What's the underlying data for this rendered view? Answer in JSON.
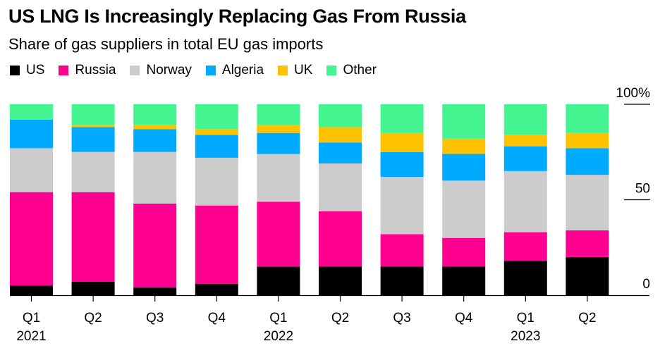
{
  "chart_data": {
    "type": "bar",
    "stacked": true,
    "title": "US LNG Is Increasingly Replacing Gas From Russia",
    "subtitle": "Share of gas suppliers in total EU gas imports",
    "xlabel": "",
    "ylabel": "",
    "ylim": [
      0,
      100
    ],
    "y_ticks": [
      {
        "value": 100,
        "label": "100%"
      },
      {
        "value": 50,
        "label": "50"
      },
      {
        "value": 0,
        "label": "0"
      }
    ],
    "categories": [
      "Q1",
      "Q2",
      "Q3",
      "Q4",
      "Q1",
      "Q2",
      "Q3",
      "Q4",
      "Q1",
      "Q2"
    ],
    "year_labels": [
      {
        "index": 0,
        "label": "2021"
      },
      {
        "index": 4,
        "label": "2022"
      },
      {
        "index": 8,
        "label": "2023"
      }
    ],
    "legend_position": "top-left",
    "series": [
      {
        "name": "US",
        "color": "#000000",
        "values": [
          5,
          7,
          4,
          6,
          15,
          15,
          15,
          15,
          18,
          20
        ]
      },
      {
        "name": "Russia",
        "color": "#ff0090",
        "values": [
          49,
          47,
          44,
          41,
          34,
          29,
          17,
          15,
          15,
          14
        ]
      },
      {
        "name": "Norway",
        "color": "#cccccc",
        "values": [
          23,
          21,
          27,
          25,
          25,
          25,
          30,
          30,
          32,
          29
        ]
      },
      {
        "name": "Algeria",
        "color": "#00aaff",
        "values": [
          15,
          13,
          12,
          12,
          11,
          11,
          13,
          14,
          13,
          14
        ]
      },
      {
        "name": "UK",
        "color": "#ffc200",
        "values": [
          0,
          1,
          2,
          3,
          4,
          8,
          10,
          8,
          6,
          8
        ]
      },
      {
        "name": "Other",
        "color": "#44f592",
        "values": [
          8,
          11,
          11,
          13,
          11,
          12,
          15,
          18,
          16,
          15
        ]
      }
    ]
  }
}
